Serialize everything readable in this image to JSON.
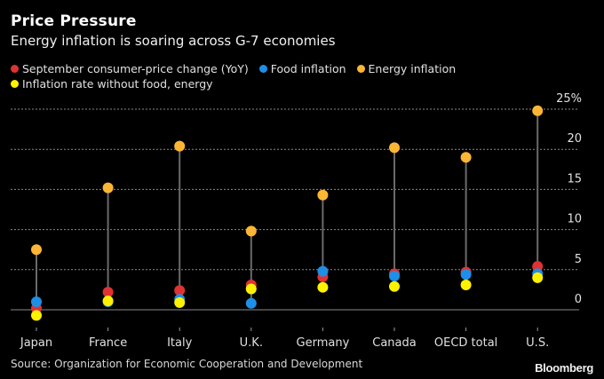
{
  "header": {
    "title": "Price Pressure",
    "subtitle": "Energy inflation is soaring across G-7 economies"
  },
  "footer": {
    "source": "Source: Organization for Economic Cooperation and Development",
    "brand": "Bloomberg"
  },
  "chart_data": {
    "type": "scatter",
    "subtype": "dot-range",
    "title": "Price Pressure",
    "subtitle": "Energy inflation is soaring across G-7 economies",
    "xlabel": "",
    "ylabel": "",
    "categories": [
      "Japan",
      "France",
      "Italy",
      "U.K.",
      "Germany",
      "Canada",
      "OECD total",
      "U.S."
    ],
    "ylim": [
      0,
      25
    ],
    "yticks": [
      0,
      5,
      10,
      15,
      20,
      25
    ],
    "ytick_labels": [
      "0",
      "5",
      "10",
      "15",
      "20",
      "25%"
    ],
    "y_axis_side": "right",
    "grid": true,
    "legend_placement": "top-left",
    "series": [
      {
        "name": "September consumer-price change (YoY)",
        "color": "#e03232",
        "values": [
          0.2,
          2.2,
          2.4,
          3.1,
          4.1,
          4.5,
          4.7,
          5.4
        ]
      },
      {
        "name": "Food inflation",
        "color": "#1e8fe6",
        "values": [
          1.0,
          1.0,
          1.3,
          0.8,
          4.8,
          4.2,
          4.4,
          4.5
        ]
      },
      {
        "name": "Energy inflation",
        "color": "#fcb634",
        "values": [
          7.5,
          15.2,
          20.4,
          9.8,
          14.3,
          20.2,
          19.0,
          24.8
        ]
      },
      {
        "name": "Inflation rate without food, energy",
        "color": "#fff200",
        "values": [
          -0.7,
          1.1,
          0.9,
          2.6,
          2.8,
          2.9,
          3.1,
          4.0
        ]
      }
    ]
  }
}
